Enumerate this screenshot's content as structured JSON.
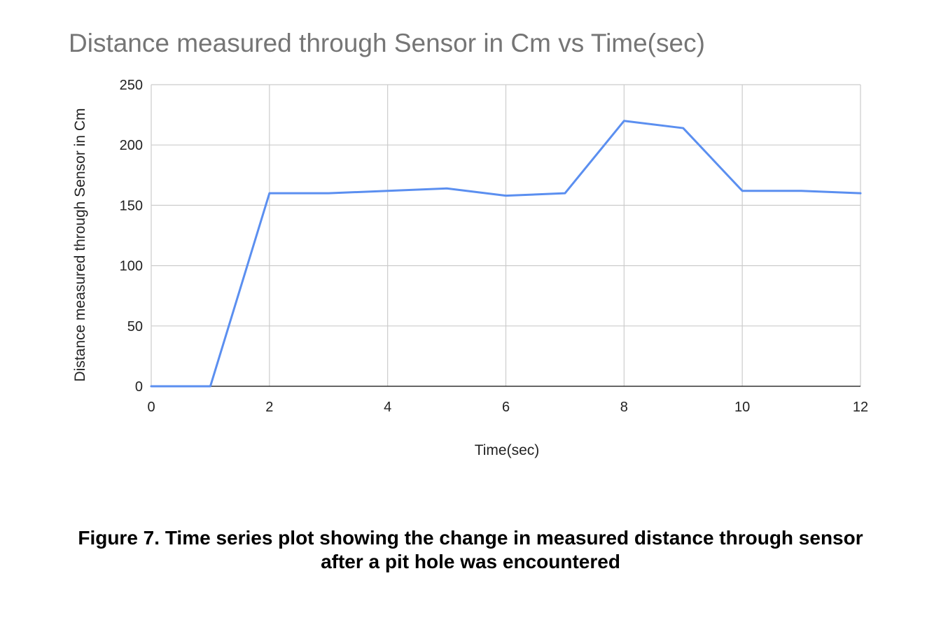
{
  "chart_data": {
    "type": "line",
    "title": "Distance measured through Sensor in Cm vs Time(sec)",
    "xlabel": "Time(sec)",
    "ylabel": "Distance measured through Sensor in Cm",
    "xlim": [
      0,
      12
    ],
    "ylim": [
      0,
      250
    ],
    "x_ticks": [
      "0",
      "2",
      "4",
      "6",
      "8",
      "10",
      "12"
    ],
    "y_ticks": [
      "0",
      "50",
      "100",
      "150",
      "200",
      "250"
    ],
    "grid": true,
    "series": [
      {
        "name": "Distance",
        "color": "#5b8ff0",
        "x": [
          0,
          1,
          2,
          3,
          4,
          5,
          6,
          7,
          8,
          9,
          10,
          11,
          12
        ],
        "y": [
          0,
          0,
          160,
          160,
          162,
          164,
          158,
          160,
          220,
          214,
          162,
          162,
          160
        ]
      }
    ]
  },
  "caption": {
    "line1": "Figure 7. Time series plot showing the change in measured distance through sensor",
    "line2": "after a pit hole was encountered"
  }
}
